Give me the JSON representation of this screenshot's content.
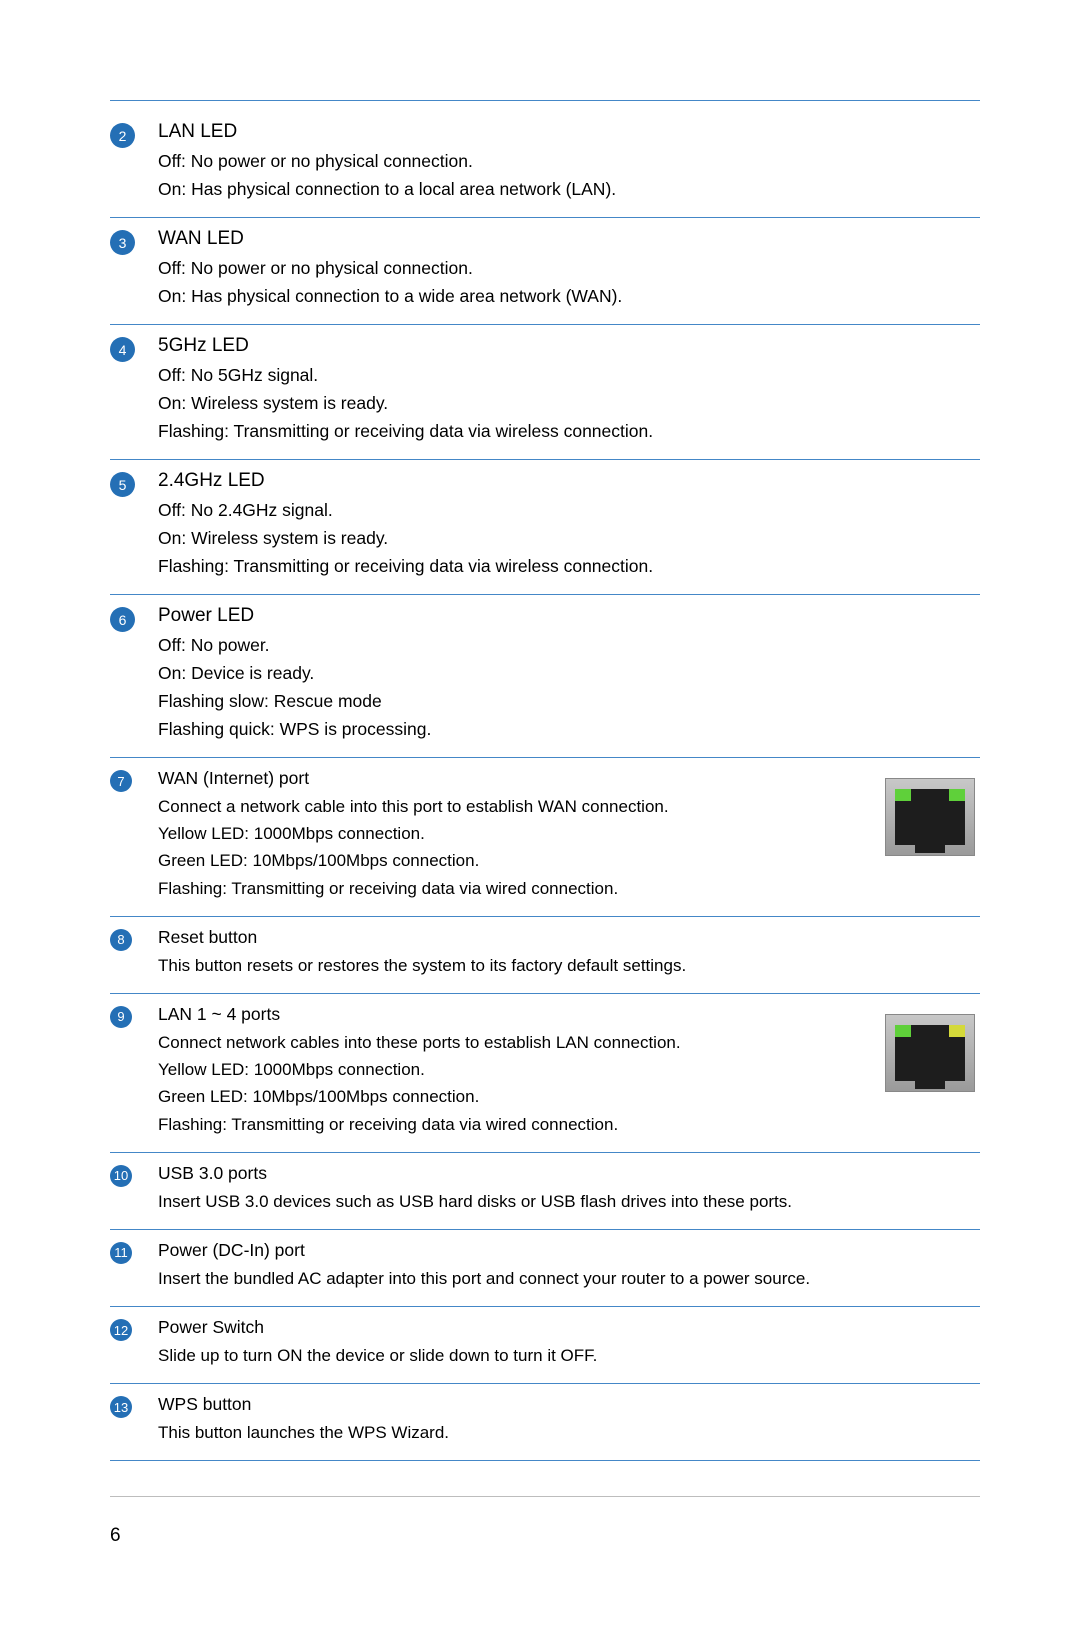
{
  "colors": {
    "rule": "#4487c7",
    "badge_bg": "#246fb5",
    "badge_fg": "#ffffff",
    "text": "#000000",
    "led_yellow": "#d4d93a",
    "led_green": "#5fd03a",
    "port_bg_top": "#c8c8c8",
    "port_bg_bot": "#9a9a9a",
    "port_body": "#1d1d1d"
  },
  "page_number": "6",
  "items": [
    {
      "num": "2",
      "title": "LAN LED",
      "lines": [
        "Off: No power or no physical connection.",
        "On: Has physical connection to a local area network (LAN)."
      ]
    },
    {
      "num": "3",
      "title": "WAN LED",
      "lines": [
        "Off: No power or no physical connection.",
        "On: Has physical connection to a wide area network (WAN)."
      ]
    },
    {
      "num": "4",
      "title": "5GHz LED",
      "lines": [
        "Off: No 5GHz signal.",
        "On: Wireless system is ready.",
        "Flashing: Transmitting or receiving data via wireless connection."
      ]
    },
    {
      "num": "5",
      "title": "2.4GHz LED",
      "lines": [
        "Off: No 2.4GHz signal.",
        "On: Wireless system is ready.",
        "Flashing: Transmitting or receiving data via wireless connection."
      ]
    },
    {
      "num": "6",
      "title": "Power LED",
      "lines": [
        "Off: No power.",
        "On: Device is ready.",
        "Flashing slow: Rescue mode",
        "Flashing quick: WPS is processing."
      ]
    },
    {
      "num": "7",
      "title": "WAN (Internet) port",
      "lines": [
        "Connect a network cable into this port to establish WAN connection.",
        "Yellow LED: 1000Mbps connection.",
        "Green LED: 10Mbps/100Mbps connection.",
        "Flashing: Transmitting or receiving data via wired connection."
      ],
      "port_icon": {
        "left_led": "#5fd03a",
        "right_led": "#5fd03a"
      }
    },
    {
      "num": "8",
      "title": "Reset button",
      "lines": [
        "This button resets or restores the system to its factory default settings."
      ]
    },
    {
      "num": "9",
      "title": "LAN 1 ~ 4 ports",
      "lines": [
        "Connect network cables into these ports to establish LAN connection.",
        "Yellow LED: 1000Mbps connection.",
        "Green LED: 10Mbps/100Mbps connection.",
        "Flashing: Transmitting or receiving data via wired connection."
      ],
      "port_icon": {
        "left_led": "#5fd03a",
        "right_led": "#d4d93a"
      }
    },
    {
      "num": "10",
      "title": "USB 3.0 ports",
      "lines": [
        "Insert USB 3.0 devices such as USB hard disks or USB flash drives into these ports."
      ]
    },
    {
      "num": "11",
      "title": "Power (DC-In) port",
      "lines": [
        "Insert the bundled AC adapter into this port and connect your router to a power source."
      ]
    },
    {
      "num": "12",
      "title": "Power Switch",
      "lines": [
        "Slide up to turn ON the device or slide down to turn it OFF."
      ]
    },
    {
      "num": "13",
      "title": "WPS button",
      "lines": [
        "This button launches the WPS Wizard."
      ]
    }
  ]
}
